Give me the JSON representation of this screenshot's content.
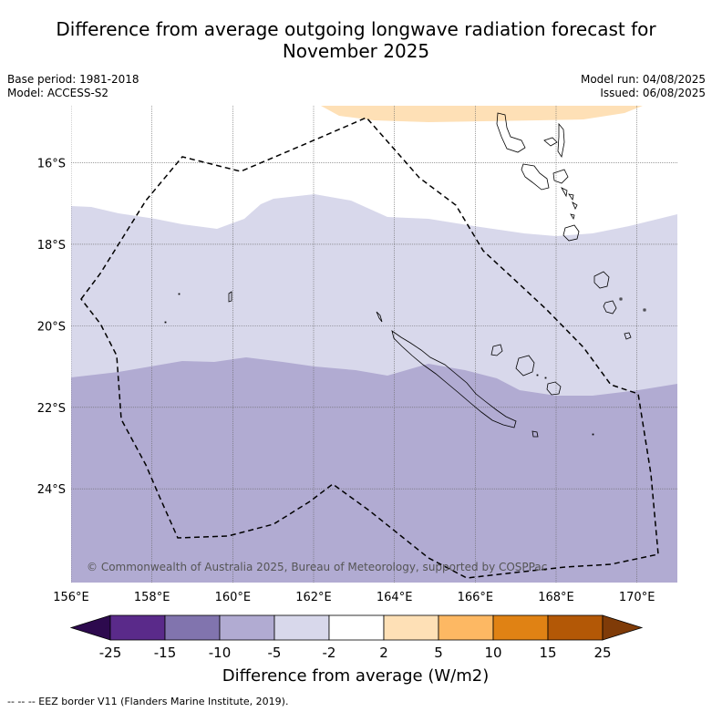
{
  "title_line1": "Difference from average outgoing longwave radiation forecast for",
  "title_line2": "November 2025",
  "meta_left": [
    "Base period: 1981-2018",
    "Model: ACCESS-S2"
  ],
  "meta_right": [
    "Model run: 04/08/2025",
    "Issued: 06/08/2025"
  ],
  "map": {
    "lon_range": [
      156,
      171
    ],
    "lat_range": [
      -26.3,
      -14.6
    ],
    "lon_ticks": [
      "156°E",
      "158°E",
      "160°E",
      "162°E",
      "164°E",
      "166°E",
      "168°E",
      "170°E"
    ],
    "lat_ticks": [
      "16°S",
      "18°S",
      "20°S",
      "22°S",
      "24°S"
    ],
    "grid": true,
    "credit": "© Commonwealth of Australia 2025, Bureau of Meteorology, supported by COSPPac"
  },
  "colorbar": {
    "labels": [
      "-25",
      "-15",
      "-10",
      "-5",
      "-2",
      "2",
      "5",
      "10",
      "15",
      "25"
    ],
    "colors": [
      "#2d0a4e",
      "#5a2a8a",
      "#8174ae",
      "#b1abd2",
      "#d8d8eb",
      "#ffffff",
      "#fee0b6",
      "#fdb863",
      "#e08214",
      "#b35806",
      "#7f3b08"
    ],
    "label": "Difference from average (W/m2)"
  },
  "legend_note": "--  --  -- EEZ border V11 (Flanders Marine Institute, 2019)."
}
